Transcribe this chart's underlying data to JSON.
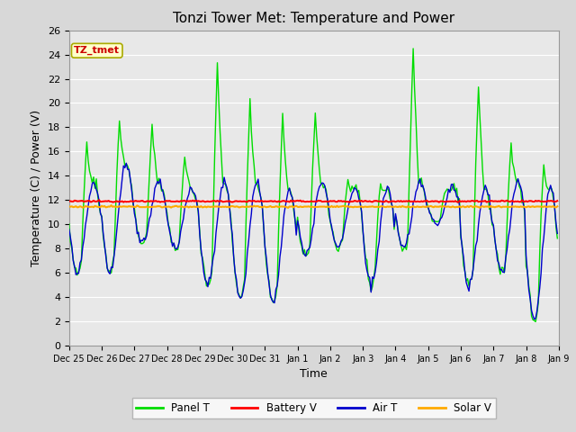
{
  "title": "Tonzi Tower Met: Temperature and Power",
  "ylabel": "Temperature (C) / Power (V)",
  "xlabel": "Time",
  "annotation": "TZ_tmet",
  "ylim": [
    0,
    26
  ],
  "yticks": [
    0,
    2,
    4,
    6,
    8,
    10,
    12,
    14,
    16,
    18,
    20,
    22,
    24,
    26
  ],
  "xtick_labels": [
    "Dec 25",
    "Dec 26",
    "Dec 27",
    "Dec 28",
    "Dec 29",
    "Dec 30",
    "Dec 31",
    "Jan 1",
    "Jan 2",
    "Jan 3",
    "Jan 4",
    "Jan 5",
    "Jan 6",
    "Jan 7",
    "Jan 8",
    "Jan 9"
  ],
  "battery_v": 11.9,
  "solar_v": 11.45,
  "panel_color": "#00dd00",
  "battery_color": "#ff0000",
  "air_color": "#0000cc",
  "solar_color": "#ffaa00",
  "bg_color": "#e8e8e8",
  "grid_color": "#ffffff",
  "legend_labels": [
    "Panel T",
    "Battery V",
    "Air T",
    "Solar V"
  ],
  "title_fontsize": 11,
  "axis_fontsize": 9,
  "tick_fontsize": 8,
  "figwidth": 6.4,
  "figheight": 4.8,
  "dpi": 100
}
